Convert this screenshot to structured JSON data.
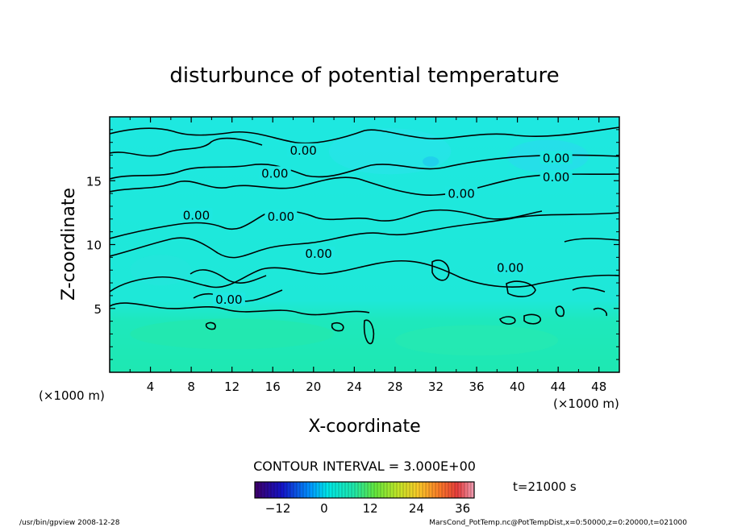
{
  "chart_data": {
    "type": "heatmap",
    "title": "disturbunce of potential temperature",
    "xlabel": "X-coordinate",
    "ylabel": "Z-coordinate",
    "x_unit": "(×1000 m)",
    "y_unit": "(×1000 m)",
    "xlim": [
      0,
      50
    ],
    "ylim": [
      0,
      20
    ],
    "x_ticks": [
      4,
      8,
      12,
      16,
      20,
      24,
      28,
      32,
      36,
      40,
      44,
      48
    ],
    "y_ticks": [
      5,
      10,
      15
    ],
    "contour_interval": "CONTOUR INTERVAL = 3.000E+00",
    "time_label": "t=21000 s",
    "contour_labels": [
      {
        "text": "0.00",
        "x": 19.0,
        "z": 17.3
      },
      {
        "text": "0.00",
        "x": 43.8,
        "z": 16.7
      },
      {
        "text": "0.00",
        "x": 16.2,
        "z": 15.5
      },
      {
        "text": "0.00",
        "x": 43.8,
        "z": 15.2
      },
      {
        "text": "0.00",
        "x": 34.5,
        "z": 13.9
      },
      {
        "text": "0.00",
        "x": 8.5,
        "z": 12.2
      },
      {
        "text": "0.00",
        "x": 16.8,
        "z": 12.1
      },
      {
        "text": "0.00",
        "x": 20.5,
        "z": 9.2
      },
      {
        "text": "0.00",
        "x": 39.3,
        "z": 8.1
      },
      {
        "text": "0.00",
        "x": 11.7,
        "z": 5.6
      }
    ],
    "colorbar": {
      "min": -18,
      "max": 39,
      "tick_labels": [
        "-12",
        "0",
        "12",
        "24",
        "36"
      ],
      "tick_values": [
        -12,
        0,
        12,
        24,
        36
      ]
    },
    "colors": {
      "upper_region": "#1ee8e0",
      "lower_region": "#1ee8b2",
      "contour": "#000000"
    }
  },
  "footer": {
    "left": "/usr/bin/gpview 2008-12-28",
    "right": "MarsCond_PotTemp.nc@PotTempDist,x=0:50000,z=0:20000,t=021000"
  }
}
